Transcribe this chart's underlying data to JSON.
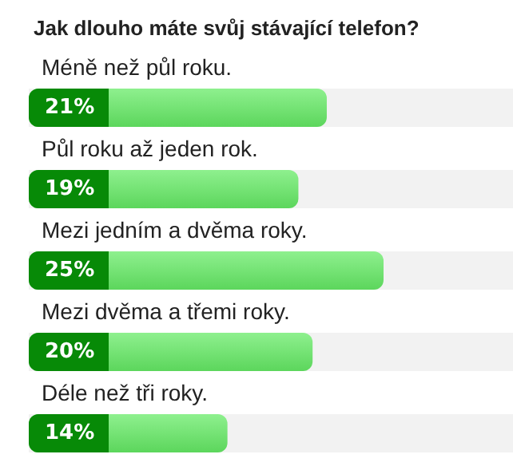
{
  "chart_data": {
    "type": "bar",
    "orientation": "horizontal",
    "title": "Jak dlouho máte svůj stávající telefon?",
    "categories": [
      "Méně než půl roku.",
      "Půl roku až jeden rok.",
      "Mezi jedním a dvěma roky.",
      "Mezi dvěma a třemi roky.",
      "Déle než tři roky."
    ],
    "values": [
      21,
      19,
      25,
      20,
      14
    ],
    "value_labels": [
      "21%",
      "19%",
      "25%",
      "20%",
      "14%"
    ],
    "color": "#5cd65c"
  }
}
